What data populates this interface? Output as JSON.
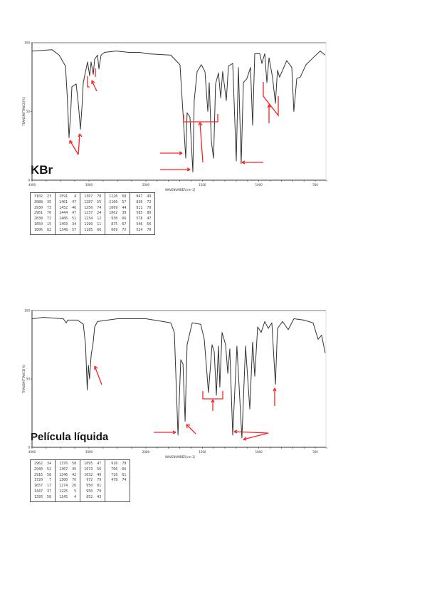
{
  "chart_data": [
    {
      "type": "line",
      "title": "KBr",
      "xlabel": "WAVENUMBER[cm-1]",
      "ylabel": "TRANSMITTANCE[%]",
      "xlim": [
        4000,
        400
      ],
      "ylim": [
        0,
        100
      ],
      "x_ticks": [
        "4000",
        "3000",
        "2000",
        "1500",
        "1000",
        "500"
      ],
      "x_tick_values": [
        4000,
        3000,
        2000,
        1500,
        1000,
        500
      ],
      "y_ticks": [
        "100",
        "50",
        "0"
      ],
      "y_tick_values": [
        100,
        50,
        0
      ],
      "series": [
        {
          "name": "KBr spectrum",
          "points": [
            [
              4000,
              94
            ],
            [
              3962,
              94
            ],
            [
              3650,
              95
            ],
            [
              3525,
              91
            ],
            [
              3412,
              83
            ],
            [
              3380,
              60
            ],
            [
              3350,
              31
            ],
            [
              3320,
              50
            ],
            [
              3300,
              68
            ],
            [
              3225,
              70
            ],
            [
              3185,
              55
            ],
            [
              3150,
              37
            ],
            [
              3120,
              55
            ],
            [
              3100,
              71
            ],
            [
              3025,
              86
            ],
            [
              2988,
              76
            ],
            [
              2962,
              86
            ],
            [
              2925,
              77
            ],
            [
              2900,
              88
            ],
            [
              2850,
              91
            ],
            [
              2825,
              81
            ],
            [
              2788,
              91
            ],
            [
              2725,
              93
            ],
            [
              2525,
              94
            ],
            [
              2300,
              93
            ],
            [
              2100,
              93
            ],
            [
              2000,
              92
            ],
            [
              1780,
              91
            ],
            [
              1698,
              84
            ],
            [
              1672,
              49
            ],
            [
              1647,
              16
            ],
            [
              1635,
              49
            ],
            [
              1610,
              46
            ],
            [
              1584,
              6
            ],
            [
              1572,
              58
            ],
            [
              1546,
              79
            ],
            [
              1509,
              84
            ],
            [
              1477,
              79
            ],
            [
              1452,
              50
            ],
            [
              1439,
              71
            ],
            [
              1420,
              28
            ],
            [
              1401,
              16
            ],
            [
              1383,
              70
            ],
            [
              1357,
              78
            ],
            [
              1338,
              60
            ],
            [
              1320,
              79
            ],
            [
              1288,
              58
            ],
            [
              1269,
              83
            ],
            [
              1231,
              85
            ],
            [
              1200,
              14
            ],
            [
              1181,
              82
            ],
            [
              1156,
              12
            ],
            [
              1137,
              71
            ],
            [
              1105,
              74
            ],
            [
              1074,
              82
            ],
            [
              1055,
              40
            ],
            [
              1036,
              92
            ],
            [
              992,
              92
            ],
            [
              973,
              85
            ],
            [
              948,
              92
            ],
            [
              929,
              71
            ],
            [
              910,
              89
            ],
            [
              879,
              75
            ],
            [
              853,
              56
            ],
            [
              835,
              80
            ],
            [
              816,
              75
            ],
            [
              753,
              87
            ],
            [
              708,
              82
            ],
            [
              690,
              50
            ],
            [
              664,
              74
            ],
            [
              633,
              75
            ],
            [
              583,
              84
            ],
            [
              520,
              89
            ],
            [
              457,
              94
            ],
            [
              413,
              91
            ]
          ]
        }
      ],
      "peak_table": [
        [
          "3102  23",
          "3088  35",
          "2930  73",
          "2961  76",
          "2838  72",
          "1650  15",
          "1606  82"
        ],
        [
          "1591   4",
          "1461  47",
          "1452  46",
          "1444  47",
          "1406  51",
          "1403  34",
          "1348  57"
        ],
        [
          "1307  70",
          "1287  55",
          "1250  74",
          "1237  24",
          "1234  12",
          "1199  11",
          "1185  66"
        ],
        [
          "1126  68",
          "1106  57",
          "1069  44",
          "1062  38",
          " 930  66",
          " 875  67",
          " 669  72"
        ],
        [
          " 847  49",
          " 836  72",
          " 811  70",
          " 585  80",
          " 578  47",
          " 546  56",
          " 524  70"
        ]
      ]
    },
    {
      "type": "line",
      "title": "Película líquida",
      "xlabel": "WAVENUMBER[cm-1]",
      "ylabel": "TRANSMITTANCE[%]",
      "xlim": [
        4000,
        400
      ],
      "ylim": [
        0,
        100
      ],
      "x_ticks": [
        "4000",
        "3000",
        "2000",
        "1500",
        "1000",
        "500"
      ],
      "x_tick_values": [
        4000,
        3000,
        2000,
        1500,
        1000,
        500
      ],
      "y_ticks": [
        "100",
        "50",
        "0"
      ],
      "y_tick_values": [
        100,
        50,
        0
      ],
      "series": [
        {
          "name": "Película líquida spectrum",
          "points": [
            [
              4000,
              94
            ],
            [
              3800,
              95
            ],
            [
              3450,
              94
            ],
            [
              3400,
              91
            ],
            [
              3370,
              93
            ],
            [
              3200,
              93
            ],
            [
              3100,
              90
            ],
            [
              3060,
              75
            ],
            [
              3030,
              42
            ],
            [
              3010,
              60
            ],
            [
              2990,
              50
            ],
            [
              2960,
              68
            ],
            [
              2930,
              75
            ],
            [
              2900,
              88
            ],
            [
              2850,
              92
            ],
            [
              2500,
              94
            ],
            [
              2000,
              94
            ],
            [
              1850,
              92
            ],
            [
              1780,
              91
            ],
            [
              1748,
              84
            ],
            [
              1716,
              9
            ],
            [
              1691,
              64
            ],
            [
              1672,
              61
            ],
            [
              1653,
              19
            ],
            [
              1635,
              75
            ],
            [
              1590,
              91
            ],
            [
              1515,
              90
            ],
            [
              1483,
              79
            ],
            [
              1446,
              40
            ],
            [
              1414,
              75
            ],
            [
              1395,
              70
            ],
            [
              1376,
              38
            ],
            [
              1357,
              74
            ],
            [
              1345,
              44
            ],
            [
              1326,
              84
            ],
            [
              1294,
              75
            ],
            [
              1275,
              54
            ],
            [
              1257,
              72
            ],
            [
              1231,
              9
            ],
            [
              1194,
              74
            ],
            [
              1150,
              7
            ],
            [
              1118,
              74
            ],
            [
              1080,
              28
            ],
            [
              1055,
              77
            ],
            [
              1036,
              52
            ],
            [
              1011,
              88
            ],
            [
              979,
              84
            ],
            [
              948,
              92
            ],
            [
              916,
              87
            ],
            [
              885,
              91
            ],
            [
              853,
              46
            ],
            [
              835,
              87
            ],
            [
              790,
              92
            ],
            [
              740,
              86
            ],
            [
              690,
              94
            ],
            [
              601,
              93
            ],
            [
              520,
              91
            ],
            [
              475,
              79
            ],
            [
              444,
              82
            ],
            [
              413,
              69
            ]
          ]
        }
      ],
      "peak_table": [
        [
          "2962  34",
          "2940  52",
          "2916  58",
          "1720   7",
          "1657  17",
          "1447  37",
          "1393  58"
        ],
        [
          "1376  58",
          "1367  45",
          "1346  42",
          "1300  76",
          "1274  26",
          "1225   5",
          "1145   4"
        ],
        [
          "1095  47",
          "1073  56",
          "1032  49",
          " 972  79",
          " 950  81",
          " 950  79",
          " 852  43"
        ],
        [
          " 916  78",
          " 766  66",
          " 728  61",
          " 478  74"
        ]
      ]
    }
  ],
  "colors": {
    "trace": "#333333",
    "annotation": "#ff2020",
    "frame": "#555555"
  }
}
